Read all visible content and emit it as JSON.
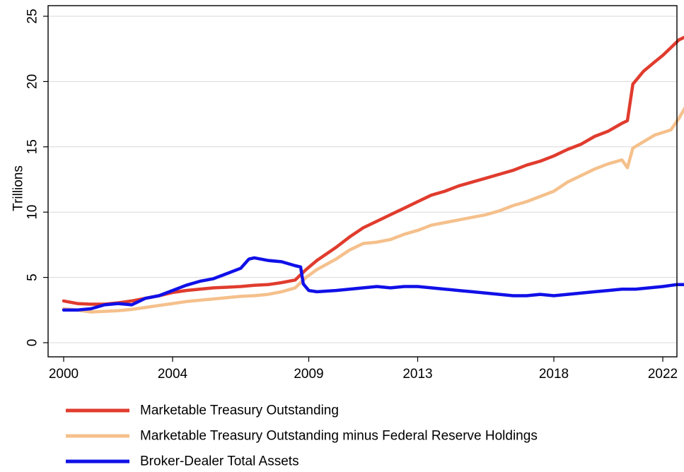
{
  "chart_data": {
    "type": "line",
    "ylabel": "Trillions",
    "xlabel": "",
    "xlim": [
      2000,
      2022
    ],
    "ylim": [
      0,
      25
    ],
    "x_ticks": [
      2000,
      2004,
      2009,
      2013,
      2018,
      2022
    ],
    "x_tick_labels": [
      "2000",
      "2004",
      "2009",
      "2013",
      "2018",
      "2022"
    ],
    "y_ticks": [
      0,
      5,
      10,
      15,
      20,
      25
    ],
    "y_tick_labels": [
      "0",
      "5",
      "10",
      "15",
      "20",
      "25"
    ],
    "grid": "horizontal",
    "legend_position": "bottom",
    "series": [
      {
        "name": "Marketable Treasury Outstanding",
        "color": "#e03c2e",
        "points": [
          [
            2000.0,
            3.2
          ],
          [
            2000.5,
            3.0
          ],
          [
            2001.0,
            2.95
          ],
          [
            2001.5,
            2.95
          ],
          [
            2002.0,
            3.05
          ],
          [
            2002.5,
            3.2
          ],
          [
            2003.0,
            3.4
          ],
          [
            2003.5,
            3.6
          ],
          [
            2004.0,
            3.85
          ],
          [
            2004.5,
            4.0
          ],
          [
            2005.0,
            4.1
          ],
          [
            2005.5,
            4.2
          ],
          [
            2006.0,
            4.25
          ],
          [
            2006.5,
            4.3
          ],
          [
            2007.0,
            4.4
          ],
          [
            2007.5,
            4.45
          ],
          [
            2008.0,
            4.6
          ],
          [
            2008.5,
            4.8
          ],
          [
            2008.9,
            5.6
          ],
          [
            2009.3,
            6.3
          ],
          [
            2010.0,
            7.3
          ],
          [
            2010.5,
            8.1
          ],
          [
            2011.0,
            8.8
          ],
          [
            2011.5,
            9.3
          ],
          [
            2012.0,
            9.8
          ],
          [
            2012.5,
            10.3
          ],
          [
            2013.0,
            10.8
          ],
          [
            2013.5,
            11.3
          ],
          [
            2014.0,
            11.6
          ],
          [
            2014.5,
            12.0
          ],
          [
            2015.0,
            12.3
          ],
          [
            2015.5,
            12.6
          ],
          [
            2016.0,
            12.9
          ],
          [
            2016.5,
            13.2
          ],
          [
            2017.0,
            13.6
          ],
          [
            2017.5,
            13.9
          ],
          [
            2018.0,
            14.3
          ],
          [
            2018.5,
            14.8
          ],
          [
            2019.0,
            15.2
          ],
          [
            2019.5,
            15.8
          ],
          [
            2020.0,
            16.2
          ],
          [
            2020.5,
            16.8
          ],
          [
            2020.7,
            17.0
          ],
          [
            2020.9,
            19.8
          ],
          [
            2021.3,
            20.8
          ],
          [
            2021.7,
            21.5
          ],
          [
            2022.0,
            22.0
          ],
          [
            2022.3,
            22.6
          ],
          [
            2022.6,
            23.2
          ],
          [
            2022.9,
            23.5
          ]
        ]
      },
      {
        "name": "Marketable Treasury Outstanding minus Federal Reserve Holdings",
        "color": "#f5c08c",
        "points": [
          [
            2000.0,
            2.6
          ],
          [
            2000.5,
            2.5
          ],
          [
            2001.0,
            2.35
          ],
          [
            2001.5,
            2.4
          ],
          [
            2002.0,
            2.45
          ],
          [
            2002.5,
            2.55
          ],
          [
            2003.0,
            2.7
          ],
          [
            2003.5,
            2.85
          ],
          [
            2004.0,
            3.0
          ],
          [
            2004.5,
            3.15
          ],
          [
            2005.0,
            3.25
          ],
          [
            2005.5,
            3.35
          ],
          [
            2006.0,
            3.45
          ],
          [
            2006.5,
            3.55
          ],
          [
            2007.0,
            3.6
          ],
          [
            2007.5,
            3.7
          ],
          [
            2008.0,
            3.9
          ],
          [
            2008.5,
            4.2
          ],
          [
            2008.9,
            5.0
          ],
          [
            2009.3,
            5.6
          ],
          [
            2010.0,
            6.4
          ],
          [
            2010.5,
            7.1
          ],
          [
            2011.0,
            7.6
          ],
          [
            2011.5,
            7.7
          ],
          [
            2012.0,
            7.9
          ],
          [
            2012.5,
            8.3
          ],
          [
            2013.0,
            8.6
          ],
          [
            2013.5,
            9.0
          ],
          [
            2014.0,
            9.2
          ],
          [
            2014.5,
            9.4
          ],
          [
            2015.0,
            9.6
          ],
          [
            2015.5,
            9.8
          ],
          [
            2016.0,
            10.1
          ],
          [
            2016.5,
            10.5
          ],
          [
            2017.0,
            10.8
          ],
          [
            2017.5,
            11.2
          ],
          [
            2018.0,
            11.6
          ],
          [
            2018.5,
            12.3
          ],
          [
            2019.0,
            12.8
          ],
          [
            2019.5,
            13.3
          ],
          [
            2020.0,
            13.7
          ],
          [
            2020.5,
            14.0
          ],
          [
            2020.7,
            13.4
          ],
          [
            2020.9,
            14.9
          ],
          [
            2021.3,
            15.4
          ],
          [
            2021.7,
            15.9
          ],
          [
            2022.0,
            16.1
          ],
          [
            2022.3,
            16.3
          ],
          [
            2022.6,
            17.2
          ],
          [
            2022.9,
            18.3
          ]
        ]
      },
      {
        "name": "Broker-Dealer Total Assets",
        "color": "#1010e8",
        "points": [
          [
            2000.0,
            2.5
          ],
          [
            2000.5,
            2.5
          ],
          [
            2001.0,
            2.6
          ],
          [
            2001.5,
            2.9
          ],
          [
            2002.0,
            3.0
          ],
          [
            2002.5,
            2.9
          ],
          [
            2003.0,
            3.4
          ],
          [
            2003.5,
            3.6
          ],
          [
            2004.0,
            4.0
          ],
          [
            2004.5,
            4.4
          ],
          [
            2005.0,
            4.7
          ],
          [
            2005.5,
            4.9
          ],
          [
            2006.0,
            5.3
          ],
          [
            2006.5,
            5.7
          ],
          [
            2006.8,
            6.4
          ],
          [
            2007.0,
            6.5
          ],
          [
            2007.5,
            6.3
          ],
          [
            2008.0,
            6.2
          ],
          [
            2008.5,
            5.9
          ],
          [
            2008.7,
            5.8
          ],
          [
            2008.8,
            4.5
          ],
          [
            2009.0,
            4.0
          ],
          [
            2009.3,
            3.9
          ],
          [
            2010.0,
            4.0
          ],
          [
            2010.5,
            4.1
          ],
          [
            2011.0,
            4.2
          ],
          [
            2011.5,
            4.3
          ],
          [
            2012.0,
            4.2
          ],
          [
            2012.5,
            4.3
          ],
          [
            2013.0,
            4.3
          ],
          [
            2013.5,
            4.2
          ],
          [
            2014.0,
            4.1
          ],
          [
            2014.5,
            4.0
          ],
          [
            2015.0,
            3.9
          ],
          [
            2015.5,
            3.8
          ],
          [
            2016.0,
            3.7
          ],
          [
            2016.5,
            3.6
          ],
          [
            2017.0,
            3.6
          ],
          [
            2017.5,
            3.7
          ],
          [
            2018.0,
            3.6
          ],
          [
            2018.5,
            3.7
          ],
          [
            2019.0,
            3.8
          ],
          [
            2019.5,
            3.9
          ],
          [
            2020.0,
            4.0
          ],
          [
            2020.5,
            4.1
          ],
          [
            2021.0,
            4.1
          ],
          [
            2021.5,
            4.2
          ],
          [
            2022.0,
            4.3
          ],
          [
            2022.5,
            4.45
          ],
          [
            2022.9,
            4.45
          ]
        ]
      }
    ]
  }
}
